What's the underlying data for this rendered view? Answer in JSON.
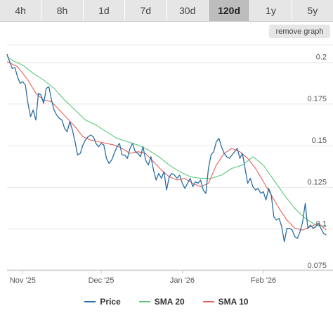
{
  "timeframes": {
    "items": [
      "4h",
      "8h",
      "1d",
      "7d",
      "30d",
      "120d",
      "1y",
      "5y"
    ],
    "active": "120d"
  },
  "remove_graph_label": "remove graph",
  "colors": {
    "price": "#2b6ca3",
    "sma20": "#5cc97a",
    "sma10": "#e8605a",
    "grid": "#e8e8e8",
    "axis_text": "#555555"
  },
  "chart_data": {
    "type": "line",
    "title": "",
    "xlabel": "",
    "ylabel": "",
    "x_range": [
      "2025-10-26",
      "2026-02-26"
    ],
    "ylim": [
      0.072,
      0.207
    ],
    "y_ticks": [
      0.075,
      0.1,
      0.125,
      0.15,
      0.175,
      0.2
    ],
    "y_tick_labels": [
      "0.075",
      "0.1",
      "0.125",
      "0.15",
      "0.175",
      "0.2"
    ],
    "x_ticks": [
      "2025-11-01",
      "2025-12-01",
      "2026-01-01",
      "2026-02-01"
    ],
    "x_tick_labels": [
      "Nov '25",
      "Dec '25",
      "Jan '26",
      "Feb '26"
    ],
    "grid": true,
    "legend": "bottom-center",
    "series": [
      {
        "name": "Price",
        "points": [
          [
            "2025-10-26",
            0.2015
          ],
          [
            "2025-10-27",
            0.197
          ],
          [
            "2025-10-28",
            0.193
          ],
          [
            "2025-10-29",
            0.1935
          ],
          [
            "2025-10-30",
            0.188
          ],
          [
            "2025-10-31",
            0.184
          ],
          [
            "2025-11-01",
            0.185
          ],
          [
            "2025-11-02",
            0.183
          ],
          [
            "2025-11-03",
            0.172
          ],
          [
            "2025-11-04",
            0.164
          ],
          [
            "2025-11-05",
            0.168
          ],
          [
            "2025-11-06",
            0.162
          ],
          [
            "2025-11-07",
            0.178
          ],
          [
            "2025-11-08",
            0.177
          ],
          [
            "2025-11-09",
            0.172
          ],
          [
            "2025-11-10",
            0.181
          ],
          [
            "2025-11-11",
            0.182
          ],
          [
            "2025-11-12",
            0.174
          ],
          [
            "2025-11-13",
            0.168
          ],
          [
            "2025-11-14",
            0.165
          ],
          [
            "2025-11-15",
            0.163
          ],
          [
            "2025-11-16",
            0.162
          ],
          [
            "2025-11-17",
            0.157
          ],
          [
            "2025-11-18",
            0.155
          ],
          [
            "2025-11-19",
            0.161
          ],
          [
            "2025-11-20",
            0.156
          ],
          [
            "2025-11-21",
            0.149
          ],
          [
            "2025-11-22",
            0.141
          ],
          [
            "2025-11-23",
            0.142
          ],
          [
            "2025-11-24",
            0.147
          ],
          [
            "2025-11-25",
            0.15
          ],
          [
            "2025-11-26",
            0.152
          ],
          [
            "2025-11-27",
            0.153
          ],
          [
            "2025-11-28",
            0.152
          ],
          [
            "2025-11-29",
            0.148
          ],
          [
            "2025-11-30",
            0.146
          ],
          [
            "2025-12-01",
            0.148
          ],
          [
            "2025-12-02",
            0.147
          ],
          [
            "2025-12-03",
            0.139
          ],
          [
            "2025-12-04",
            0.136
          ],
          [
            "2025-12-05",
            0.138
          ],
          [
            "2025-12-06",
            0.142
          ],
          [
            "2025-12-07",
            0.146
          ],
          [
            "2025-12-08",
            0.148
          ],
          [
            "2025-12-09",
            0.141
          ],
          [
            "2025-12-10",
            0.141
          ],
          [
            "2025-12-11",
            0.139
          ],
          [
            "2025-12-12",
            0.145
          ],
          [
            "2025-12-13",
            0.148
          ],
          [
            "2025-12-14",
            0.143
          ],
          [
            "2025-12-15",
            0.142
          ],
          [
            "2025-12-16",
            0.14
          ],
          [
            "2025-12-17",
            0.146
          ],
          [
            "2025-12-18",
            0.138
          ],
          [
            "2025-12-19",
            0.135
          ],
          [
            "2025-12-20",
            0.14
          ],
          [
            "2025-12-21",
            0.132
          ],
          [
            "2025-12-22",
            0.126
          ],
          [
            "2025-12-23",
            0.13
          ],
          [
            "2025-12-24",
            0.127
          ],
          [
            "2025-12-25",
            0.131
          ],
          [
            "2025-12-26",
            0.12
          ],
          [
            "2025-12-27",
            0.128
          ],
          [
            "2025-12-28",
            0.13
          ],
          [
            "2025-12-29",
            0.129
          ],
          [
            "2025-12-30",
            0.127
          ],
          [
            "2025-12-31",
            0.129
          ],
          [
            "2026-01-01",
            0.124
          ],
          [
            "2026-01-02",
            0.121
          ],
          [
            "2026-01-03",
            0.124
          ],
          [
            "2026-01-04",
            0.127
          ],
          [
            "2026-01-05",
            0.122
          ],
          [
            "2026-01-06",
            0.125
          ],
          [
            "2026-01-07",
            0.124
          ],
          [
            "2026-01-08",
            0.126
          ],
          [
            "2026-01-09",
            0.12
          ],
          [
            "2026-01-10",
            0.118
          ],
          [
            "2026-01-11",
            0.133
          ],
          [
            "2026-01-12",
            0.141
          ],
          [
            "2026-01-13",
            0.143
          ],
          [
            "2026-01-14",
            0.149
          ],
          [
            "2026-01-15",
            0.151
          ],
          [
            "2026-01-16",
            0.146
          ],
          [
            "2026-01-17",
            0.142
          ],
          [
            "2026-01-18",
            0.14
          ],
          [
            "2026-01-19",
            0.139
          ],
          [
            "2026-01-20",
            0.141
          ],
          [
            "2026-01-21",
            0.143
          ],
          [
            "2026-01-22",
            0.145
          ],
          [
            "2026-01-23",
            0.139
          ],
          [
            "2026-01-24",
            0.142
          ],
          [
            "2026-01-25",
            0.133
          ],
          [
            "2026-01-26",
            0.124
          ],
          [
            "2026-01-27",
            0.127
          ],
          [
            "2026-01-28",
            0.122
          ],
          [
            "2026-01-29",
            0.12
          ],
          [
            "2026-01-30",
            0.121
          ],
          [
            "2026-01-31",
            0.118
          ],
          [
            "2026-02-01",
            0.119
          ],
          [
            "2026-02-02",
            0.114
          ],
          [
            "2026-02-03",
            0.121
          ],
          [
            "2026-02-04",
            0.117
          ],
          [
            "2026-02-05",
            0.104
          ],
          [
            "2026-02-06",
            0.102
          ],
          [
            "2026-02-07",
            0.103
          ],
          [
            "2026-02-08",
            0.098
          ],
          [
            "2026-02-09",
            0.089
          ],
          [
            "2026-02-10",
            0.097
          ],
          [
            "2026-02-11",
            0.097
          ],
          [
            "2026-02-12",
            0.096
          ],
          [
            "2026-02-13",
            0.092
          ],
          [
            "2026-02-14",
            0.091
          ],
          [
            "2026-02-15",
            0.095
          ],
          [
            "2026-02-16",
            0.101
          ],
          [
            "2026-02-17",
            0.112
          ],
          [
            "2026-02-18",
            0.097
          ],
          [
            "2026-02-19",
            0.099
          ],
          [
            "2026-02-20",
            0.097
          ],
          [
            "2026-02-21",
            0.098
          ],
          [
            "2026-02-22",
            0.1
          ],
          [
            "2026-02-23",
            0.097
          ],
          [
            "2026-02-24",
            0.094
          ],
          [
            "2026-02-25",
            0.093
          ]
        ]
      },
      {
        "name": "SMA 20",
        "points": [
          [
            "2025-10-26",
            0.2
          ],
          [
            "2025-10-29",
            0.197
          ],
          [
            "2025-11-01",
            0.195
          ],
          [
            "2025-11-05",
            0.19
          ],
          [
            "2025-11-09",
            0.186
          ],
          [
            "2025-11-13",
            0.181
          ],
          [
            "2025-11-17",
            0.174
          ],
          [
            "2025-11-21",
            0.168
          ],
          [
            "2025-11-25",
            0.162
          ],
          [
            "2025-11-29",
            0.159
          ],
          [
            "2025-12-03",
            0.155
          ],
          [
            "2025-12-07",
            0.151
          ],
          [
            "2025-12-11",
            0.149
          ],
          [
            "2025-12-15",
            0.147
          ],
          [
            "2025-12-19",
            0.144
          ],
          [
            "2025-12-23",
            0.14
          ],
          [
            "2025-12-27",
            0.135
          ],
          [
            "2025-12-31",
            0.131
          ],
          [
            "2026-01-04",
            0.128
          ],
          [
            "2026-01-08",
            0.127
          ],
          [
            "2026-01-12",
            0.127
          ],
          [
            "2026-01-16",
            0.129
          ],
          [
            "2026-01-20",
            0.133
          ],
          [
            "2026-01-24",
            0.135
          ],
          [
            "2026-01-28",
            0.14
          ],
          [
            "2026-02-01",
            0.135
          ],
          [
            "2026-02-05",
            0.126
          ],
          [
            "2026-02-09",
            0.117
          ],
          [
            "2026-02-13",
            0.109
          ],
          [
            "2026-02-17",
            0.103
          ],
          [
            "2026-02-21",
            0.099
          ],
          [
            "2026-02-25",
            0.098
          ]
        ]
      },
      {
        "name": "SMA 10",
        "points": [
          [
            "2025-10-26",
            0.197
          ],
          [
            "2025-10-30",
            0.194
          ],
          [
            "2025-11-03",
            0.186
          ],
          [
            "2025-11-06",
            0.178
          ],
          [
            "2025-11-09",
            0.174
          ],
          [
            "2025-11-12",
            0.173
          ],
          [
            "2025-11-15",
            0.168
          ],
          [
            "2025-11-18",
            0.163
          ],
          [
            "2025-11-21",
            0.158
          ],
          [
            "2025-11-24",
            0.152
          ],
          [
            "2025-11-27",
            0.15
          ],
          [
            "2025-11-30",
            0.149
          ],
          [
            "2025-12-03",
            0.148
          ],
          [
            "2025-12-06",
            0.147
          ],
          [
            "2025-12-09",
            0.145
          ],
          [
            "2025-12-12",
            0.142
          ],
          [
            "2025-12-15",
            0.143
          ],
          [
            "2025-12-18",
            0.142
          ],
          [
            "2025-12-21",
            0.137
          ],
          [
            "2025-12-24",
            0.132
          ],
          [
            "2025-12-27",
            0.128
          ],
          [
            "2025-12-30",
            0.126
          ],
          [
            "2026-01-02",
            0.127
          ],
          [
            "2026-01-05",
            0.124
          ],
          [
            "2026-01-08",
            0.122
          ],
          [
            "2026-01-11",
            0.124
          ],
          [
            "2026-01-14",
            0.135
          ],
          [
            "2026-01-17",
            0.142
          ],
          [
            "2026-01-20",
            0.145
          ],
          [
            "2026-01-23",
            0.143
          ],
          [
            "2026-01-26",
            0.139
          ],
          [
            "2026-01-29",
            0.133
          ],
          [
            "2026-02-01",
            0.125
          ],
          [
            "2026-02-04",
            0.117
          ],
          [
            "2026-02-07",
            0.109
          ],
          [
            "2026-02-10",
            0.102
          ],
          [
            "2026-02-13",
            0.097
          ],
          [
            "2026-02-16",
            0.096
          ],
          [
            "2026-02-19",
            0.098
          ],
          [
            "2026-02-22",
            0.1
          ],
          [
            "2026-02-25",
            0.096
          ]
        ]
      }
    ]
  }
}
